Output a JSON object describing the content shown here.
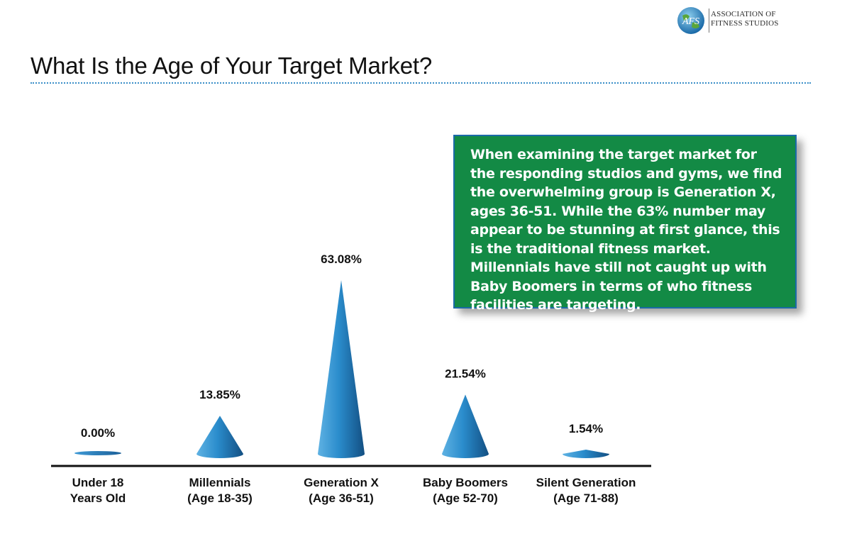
{
  "header": {
    "title": "What Is the Age of Your Target Market?",
    "logo_lines": [
      "ASSOCIATION OF",
      "FITNESS STUDIOS"
    ],
    "logo_mark_text": "AFS"
  },
  "callout": {
    "text": "When examining the target market for the responding studios and gyms, we find the overwhelming group is Generation X, ages 36-51. While the 63% number may appear to be stunning at first glance, this is the traditional fitness market. Millennials have still not caught up with Baby Boomers in terms of who fitness facilities are targeting.",
    "background_color": "#138a45",
    "border_color": "#1a6aa8"
  },
  "chart_data": {
    "type": "bar",
    "bar_shape": "cone",
    "categories": [
      [
        "Under 18",
        "Years Old"
      ],
      [
        "Millennials",
        "(Age 18-35)"
      ],
      [
        "Generation X",
        "(Age 36-51)"
      ],
      [
        "Baby Boomers",
        "(Age 52-70)"
      ],
      [
        "Silent Generation",
        "(Age 71-88)"
      ]
    ],
    "values": [
      0.0,
      13.85,
      63.08,
      21.54,
      1.54
    ],
    "data_labels": [
      "0.00%",
      "13.85%",
      "63.08%",
      "21.54%",
      "1.54%"
    ],
    "ylim": [
      0,
      63.08
    ],
    "grid": false,
    "bar_color": "#1e78b8"
  }
}
